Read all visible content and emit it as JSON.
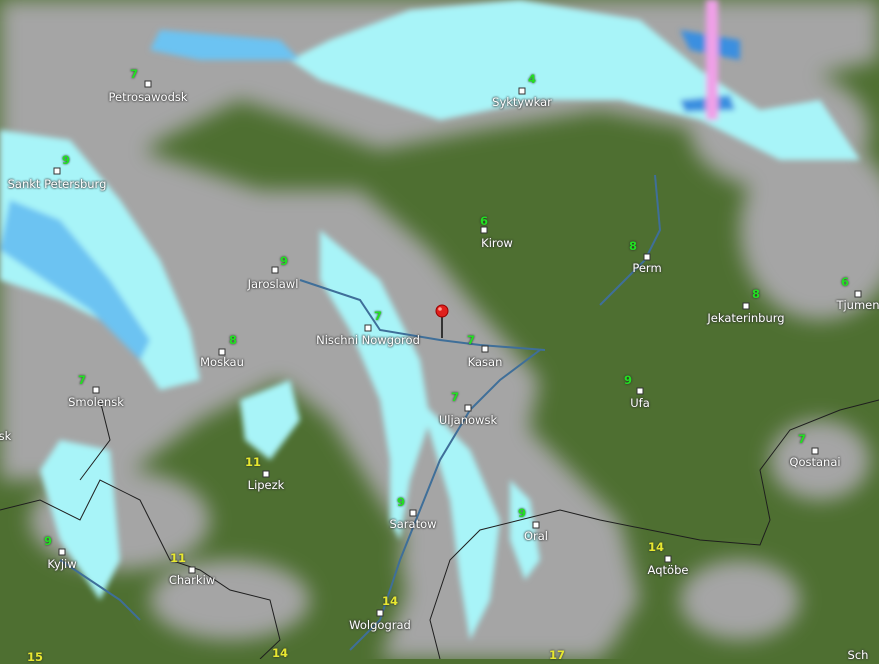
{
  "map": {
    "colors": {
      "land": "#4e6f31",
      "cloud": "#a3a3a3",
      "rain_light": "#a8f4f8",
      "rain_moderate": "#6cc3f2",
      "rain_heavy": "#3a8fe0",
      "snow": "#f0a0e8",
      "temp_cool": "#22e022",
      "temp_warm": "#e8e830",
      "river": "#3f6f99"
    },
    "cities": [
      {
        "name": "Petrosawodsk",
        "temp": "7"
      },
      {
        "name": "Syktywkar",
        "temp": "4"
      },
      {
        "name": "Sankt Petersburg",
        "temp": "9"
      },
      {
        "name": "Kirow",
        "temp": "6"
      },
      {
        "name": "Perm",
        "temp": "8"
      },
      {
        "name": "Jaroslawl",
        "temp": "9"
      },
      {
        "name": "Jekaterinburg",
        "temp": "8"
      },
      {
        "name": "Tjumen",
        "temp": "6"
      },
      {
        "name": "Nischni Nowgorod",
        "temp": "7"
      },
      {
        "name": "Kasan",
        "temp": "7"
      },
      {
        "name": "Moskau",
        "temp": "8"
      },
      {
        "name": "Smolensk",
        "temp": "7"
      },
      {
        "name": "Ufa",
        "temp": "9"
      },
      {
        "name": "Uljanowsk",
        "temp": "7"
      },
      {
        "name": "Qostanai",
        "temp": "7"
      },
      {
        "name": "Lipezk",
        "temp": "11"
      },
      {
        "name": "Saratow",
        "temp": "9"
      },
      {
        "name": "Oral",
        "temp": "9"
      },
      {
        "name": "Kyjiw",
        "temp": "9"
      },
      {
        "name": "Aqtöbe",
        "temp": "14"
      },
      {
        "name": "Charkiw",
        "temp": "11"
      },
      {
        "name": "Wolgograd",
        "temp": "14"
      }
    ],
    "edge_labels": [
      {
        "text": "15",
        "kind": "temp"
      },
      {
        "text": "14",
        "kind": "temp"
      },
      {
        "text": "17",
        "kind": "temp"
      },
      {
        "text": "Sch",
        "kind": "city"
      },
      {
        "text": "sk",
        "kind": "city"
      }
    ],
    "location_pin": "map-pin-icon"
  }
}
